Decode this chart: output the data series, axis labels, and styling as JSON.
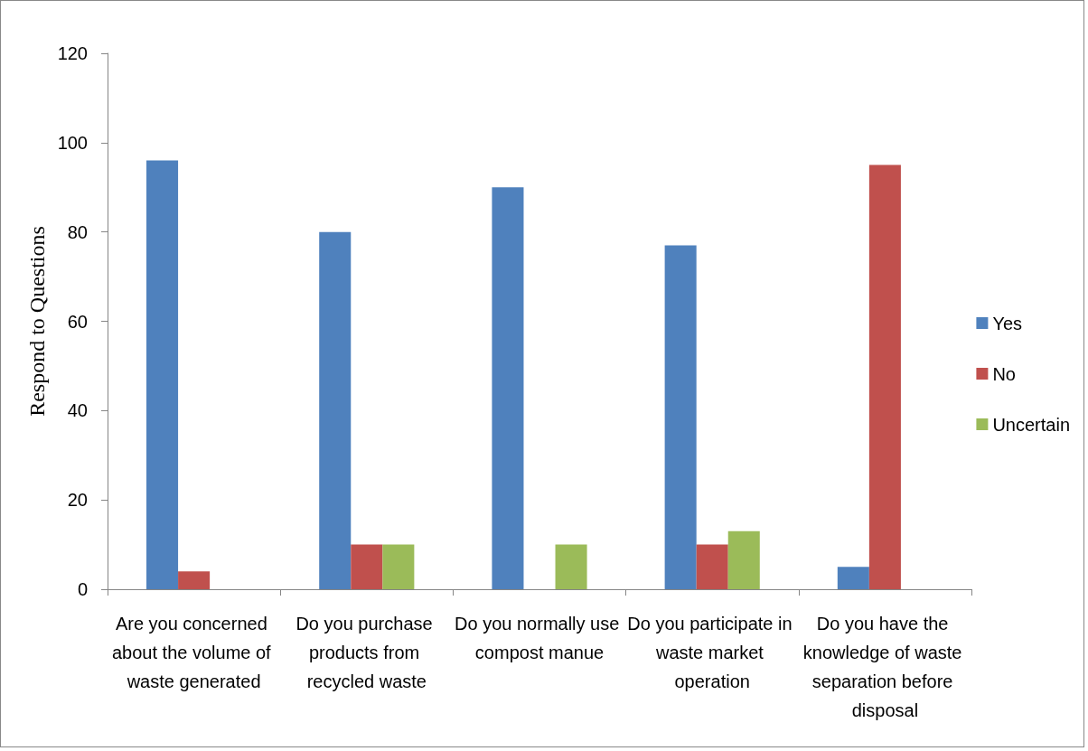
{
  "chart_data": {
    "type": "bar",
    "ylabel": "Respond to Questions",
    "categories": [
      "Are you concerned about the volume of waste generated",
      "Do you purchase products from recycled waste",
      "Do you normally use compost manue",
      "Do you participate in waste market operation",
      "Do you have the knowledge of waste separation before disposal"
    ],
    "series": [
      {
        "name": "Yes",
        "color": "#4f81bd",
        "values": [
          96,
          80,
          90,
          77,
          5
        ]
      },
      {
        "name": "No",
        "color": "#c0504d",
        "values": [
          4,
          10,
          null,
          10,
          95
        ]
      },
      {
        "name": "Uncertain",
        "color": "#9bbb59",
        "values": [
          null,
          10,
          10,
          13,
          null
        ]
      }
    ],
    "ylim": [
      0,
      120
    ],
    "yticks": [
      0,
      20,
      40,
      60,
      80,
      100,
      120
    ],
    "grid": false,
    "legend": "right"
  }
}
